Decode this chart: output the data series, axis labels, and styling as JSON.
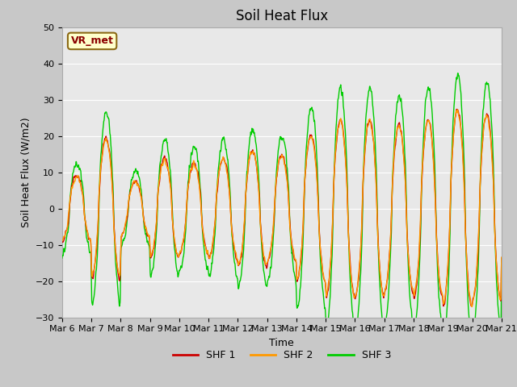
{
  "title": "Soil Heat Flux",
  "ylabel": "Soil Heat Flux (W/m2)",
  "xlabel": "Time",
  "ylim": [
    -30,
    50
  ],
  "yticks": [
    -30,
    -20,
    -10,
    0,
    10,
    20,
    30,
    40,
    50
  ],
  "x_tick_labels": [
    "Mar 6",
    "Mar 7",
    "Mar 8",
    "Mar 9",
    "Mar 10",
    "Mar 11",
    "Mar 12",
    "Mar 13",
    "Mar 14",
    "Mar 15",
    "Mar 16",
    "Mar 17",
    "Mar 18",
    "Mar 19",
    "Mar 20",
    "Mar 21"
  ],
  "color_shf1": "#cc0000",
  "color_shf2": "#ff9900",
  "color_shf3": "#00cc00",
  "legend_labels": [
    "SHF 1",
    "SHF 2",
    "SHF 3"
  ],
  "annotation_text": "VR_met",
  "annotation_bbox_facecolor": "#ffffcc",
  "annotation_bbox_edgecolor": "#8b6914",
  "annotation_text_color": "#8b0000",
  "plot_bg_color": "#e8e8e8",
  "fig_bg_color": "#c8c8c8",
  "grid_color": "#ffffff",
  "title_fontsize": 12,
  "label_fontsize": 9,
  "tick_fontsize": 8,
  "line_width": 1.0,
  "day_amplitudes_shf1": [
    0.65,
    1.4,
    0.55,
    1.0,
    0.9,
    1.0,
    1.15,
    1.05,
    1.45,
    1.75,
    1.75,
    1.65,
    1.75,
    1.95,
    1.85
  ],
  "day_amplitudes_shf2": [
    0.62,
    1.35,
    0.53,
    0.97,
    0.87,
    0.97,
    1.12,
    1.02,
    1.42,
    1.72,
    1.72,
    1.62,
    1.72,
    1.92,
    1.82
  ],
  "day_amplitudes_shf3": [
    0.88,
    1.9,
    0.75,
    1.35,
    1.22,
    1.35,
    1.56,
    1.42,
    1.97,
    2.37,
    2.37,
    2.23,
    2.37,
    2.63,
    2.5
  ]
}
